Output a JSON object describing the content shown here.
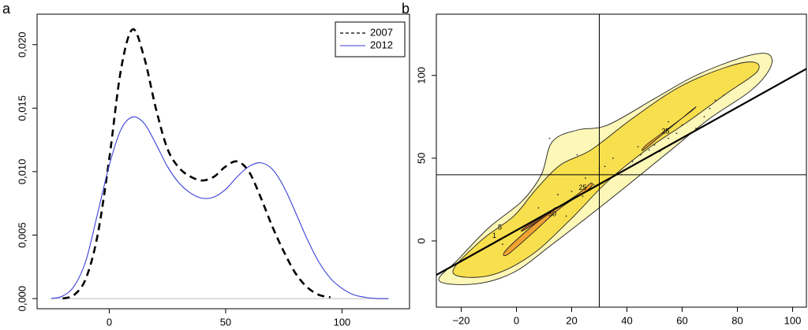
{
  "chart_data": [
    {
      "type": "line",
      "label": "a",
      "x": [
        -25,
        -20,
        -15,
        -10,
        -5,
        0,
        5,
        10,
        15,
        20,
        25,
        30,
        35,
        40,
        45,
        50,
        55,
        60,
        65,
        70,
        75,
        80,
        85,
        90,
        95,
        100,
        105,
        110,
        115,
        120
      ],
      "series": [
        {
          "name": "2007",
          "color": "#000000",
          "linestyle": "dashed",
          "values": [
            null,
            0.0,
            0.0003,
            0.0016,
            0.005,
            0.011,
            0.018,
            0.0212,
            0.019,
            0.015,
            0.0118,
            0.0103,
            0.0096,
            0.0093,
            0.0096,
            0.0104,
            0.0108,
            0.01,
            0.008,
            0.0057,
            0.0037,
            0.002,
            0.0009,
            0.0003,
            0.0001,
            null,
            null,
            null,
            null,
            null
          ]
        },
        {
          "name": "2012",
          "color": "#3a3fd6",
          "linestyle": "solid",
          "values": [
            0.0,
            0.0002,
            0.001,
            0.003,
            0.0067,
            0.0105,
            0.0133,
            0.0143,
            0.0138,
            0.0122,
            0.0104,
            0.0091,
            0.0083,
            0.0079,
            0.008,
            0.0086,
            0.0096,
            0.0104,
            0.0107,
            0.0102,
            0.0088,
            0.0068,
            0.0047,
            0.0029,
            0.0016,
            0.0008,
            0.0003,
            0.0001,
            0.0,
            0.0
          ]
        }
      ],
      "xlim": [
        -31,
        129
      ],
      "ylim": [
        -0.0008,
        0.0224
      ],
      "xticks": [
        0,
        50,
        100
      ],
      "yticks": [
        {
          "value": 0,
          "label": "0,000"
        },
        {
          "value": 0.005,
          "label": "0,005"
        },
        {
          "value": 0.01,
          "label": "0,010"
        },
        {
          "value": 0.015,
          "label": "0,015"
        },
        {
          "value": 0.02,
          "label": "0,020"
        }
      ],
      "legend": "top-right"
    },
    {
      "type": "contour",
      "label": "b",
      "contours": [
        {
          "color": "#fdf7b8",
          "x": [
            -28,
            -21,
            -10,
            2,
            9,
            13,
            22,
            33,
            50,
            65,
            82,
            91,
            92,
            85,
            70,
            56,
            42,
            30,
            13,
            -1,
            -15
          ],
          "y": [
            -24,
            -11,
            8,
            24,
            40,
            60,
            67,
            70,
            86,
            100,
            111,
            113,
            105,
            91,
            74,
            55,
            36,
            20,
            -2,
            -19,
            -26
          ]
        },
        {
          "color": "#f8df4e",
          "x": [
            -23,
            -13,
            -1,
            7,
            16,
            27,
            42,
            59,
            76,
            86,
            87,
            76,
            62,
            47,
            33,
            19,
            5,
            -10
          ],
          "y": [
            -19,
            0,
            15,
            31,
            46,
            55,
            74,
            93,
            105,
            108,
            102,
            89,
            72,
            55,
            36,
            12,
            -9,
            -21
          ]
        },
        {
          "color": "#f2a232",
          "x": [
            -4,
            5,
            13,
            22,
            27,
            26,
            16,
            6,
            -3
          ],
          "y": [
            -6,
            8,
            18,
            28,
            35,
            31,
            20,
            5,
            -8
          ]
        },
        {
          "color": "#f2a232",
          "x": [
            47,
            55,
            63,
            65,
            62,
            54,
            46
          ],
          "y": [
            58,
            68,
            78,
            81,
            77,
            66,
            55
          ]
        },
        {
          "color": "#e4621e",
          "x": [
            3,
            9,
            14,
            13,
            7,
            2
          ],
          "y": [
            8,
            14,
            20,
            18,
            11,
            6
          ]
        }
      ],
      "annotations": [
        {
          "text": "25",
          "x": 24,
          "y": 32
        },
        {
          "text": "25",
          "x": 54,
          "y": 66
        },
        {
          "text": "50",
          "x": 13,
          "y": 16
        },
        {
          "text": "5",
          "x": -6,
          "y": 8
        },
        {
          "text": "1",
          "x": -8,
          "y": 3
        }
      ],
      "points": {
        "x": [
          12,
          20,
          25,
          28,
          32,
          35,
          38,
          42,
          45,
          48,
          50,
          52,
          55,
          58,
          60,
          62,
          65,
          68,
          70,
          72,
          8,
          15,
          18,
          -5,
          24,
          30,
          44,
          55,
          75,
          22
        ],
        "y": [
          62,
          30,
          38,
          34,
          45,
          50,
          40,
          48,
          52,
          55,
          58,
          54,
          62,
          65,
          70,
          64,
          68,
          75,
          80,
          85,
          20,
          28,
          15,
          -2,
          27,
          44,
          57,
          72,
          88,
          52
        ]
      },
      "line": {
        "x": [
          -37,
          105
        ],
        "y": [
          -28,
          104
        ]
      },
      "vlines": [
        30
      ],
      "hlines": [
        40
      ],
      "xlim": [
        -29,
        105
      ],
      "ylim": [
        -40,
        137
      ],
      "xticks": [
        {
          "value": -20,
          "label": "−20"
        },
        0,
        20,
        40,
        60,
        80,
        100
      ],
      "yticks": [
        0,
        50,
        100
      ]
    }
  ]
}
